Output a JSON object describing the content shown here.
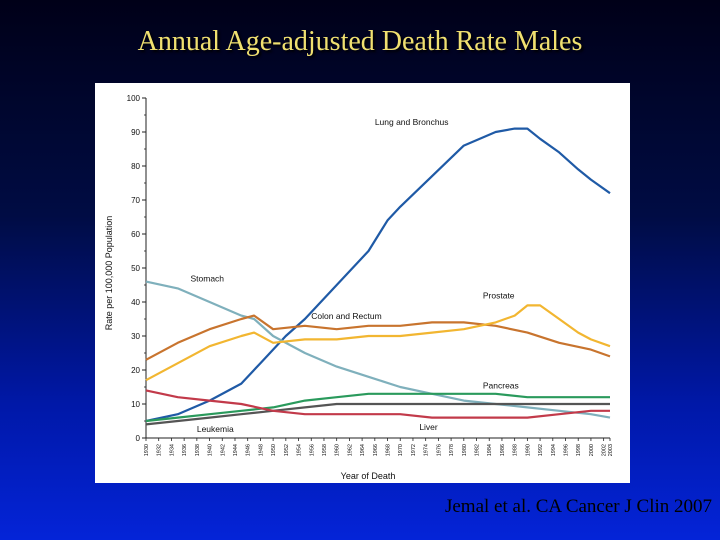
{
  "slide": {
    "title": "Annual Age-adjusted Death Rate Males",
    "citation": "Jemal et al. CA Cancer J Clin 2007"
  },
  "chart_data": {
    "type": "line",
    "xlabel": "Year of Death",
    "ylabel": "Rate per 100,000 Population",
    "xlim": [
      1930,
      2003
    ],
    "ylim": [
      0,
      100
    ],
    "yticks": [
      0,
      10,
      20,
      30,
      40,
      50,
      60,
      70,
      80,
      90,
      100
    ],
    "xticks": [
      "1930",
      "1932",
      "1934",
      "1936",
      "1938",
      "1940",
      "1942",
      "1944",
      "1946",
      "1948",
      "1950",
      "1952",
      "1954",
      "1956",
      "1958",
      "1960",
      "1962",
      "1964",
      "1966",
      "1968",
      "1970",
      "1972",
      "1974",
      "1976",
      "1978",
      "1980",
      "1982",
      "1984",
      "1986",
      "1988",
      "1990",
      "1992",
      "1994",
      "1996",
      "1998",
      "2000",
      "2002",
      "2003"
    ],
    "grid": false,
    "legend": "inline labels",
    "series": [
      {
        "name": "Lung and Bronchus",
        "color": "#1f5aa6",
        "x": [
          1930,
          1935,
          1940,
          1945,
          1948,
          1950,
          1952,
          1955,
          1960,
          1965,
          1968,
          1970,
          1975,
          1980,
          1985,
          1988,
          1990,
          1992,
          1995,
          1998,
          2000,
          2003
        ],
        "y": [
          5,
          7,
          11,
          16,
          22,
          26,
          30,
          35,
          45,
          55,
          64,
          68,
          77,
          86,
          90,
          91,
          91,
          88,
          84,
          79,
          76,
          72
        ]
      },
      {
        "name": "Stomach",
        "color": "#7fb0bc",
        "x": [
          1930,
          1935,
          1940,
          1945,
          1947,
          1950,
          1955,
          1960,
          1965,
          1970,
          1975,
          1980,
          1985,
          1990,
          1995,
          2000,
          2003
        ],
        "y": [
          46,
          44,
          40,
          36,
          35,
          30,
          25,
          21,
          18,
          15,
          13,
          11,
          10,
          9,
          8,
          7,
          6
        ]
      },
      {
        "name": "Colon and Rectum",
        "color": "#c8742e",
        "x": [
          1930,
          1935,
          1940,
          1945,
          1947,
          1950,
          1955,
          1960,
          1965,
          1970,
          1975,
          1980,
          1985,
          1990,
          1995,
          2000,
          2003
        ],
        "y": [
          23,
          28,
          32,
          35,
          36,
          32,
          33,
          32,
          33,
          33,
          34,
          34,
          33,
          31,
          28,
          26,
          24
        ]
      },
      {
        "name": "Prostate",
        "color": "#f2b631",
        "x": [
          1930,
          1935,
          1940,
          1945,
          1947,
          1950,
          1955,
          1960,
          1965,
          1970,
          1975,
          1980,
          1985,
          1988,
          1990,
          1992,
          1995,
          1998,
          2000,
          2003
        ],
        "y": [
          17,
          22,
          27,
          30,
          31,
          28,
          29,
          29,
          30,
          30,
          31,
          32,
          34,
          36,
          39,
          39,
          35,
          31,
          29,
          27
        ]
      },
      {
        "name": "Pancreas",
        "color": "#2a9a5c",
        "x": [
          1930,
          1935,
          1940,
          1945,
          1950,
          1955,
          1960,
          1965,
          1970,
          1975,
          1980,
          1985,
          1990,
          1995,
          2000,
          2003
        ],
        "y": [
          5,
          6,
          7,
          8,
          9,
          11,
          12,
          13,
          13,
          13,
          13,
          13,
          12,
          12,
          12,
          12
        ]
      },
      {
        "name": "Leukemia",
        "color": "#555555",
        "x": [
          1930,
          1935,
          1940,
          1945,
          1950,
          1955,
          1960,
          1965,
          1970,
          1975,
          1980,
          1985,
          1990,
          1995,
          2000,
          2003
        ],
        "y": [
          4,
          5,
          6,
          7,
          8,
          9,
          10,
          10,
          10,
          10,
          10,
          10,
          10,
          10,
          10,
          10
        ]
      },
      {
        "name": "Liver",
        "color": "#c23a4a",
        "x": [
          1930,
          1935,
          1940,
          1945,
          1950,
          1955,
          1960,
          1965,
          1970,
          1975,
          1980,
          1985,
          1990,
          1995,
          2000,
          2003
        ],
        "y": [
          14,
          12,
          11,
          10,
          8,
          7,
          7,
          7,
          7,
          6,
          6,
          6,
          6,
          7,
          8,
          8
        ]
      }
    ]
  }
}
